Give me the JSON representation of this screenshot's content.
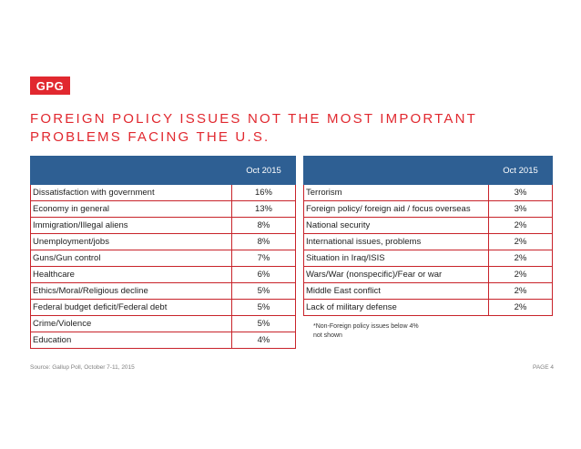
{
  "logo": "GPG",
  "title": "FOREIGN POLICY ISSUES NOT THE MOST IMPORTANT PROBLEMS FACING THE U.S.",
  "colors": {
    "accent": "#e1282f",
    "header": "#2e5f93",
    "border": "#c8232a"
  },
  "left_table": {
    "header_label": "",
    "header_value": "Oct 2015",
    "rows": [
      {
        "label": "Dissatisfaction with government",
        "value": "16%"
      },
      {
        "label": "Economy in general",
        "value": "13%"
      },
      {
        "label": "Immigration/Illegal aliens",
        "value": "8%"
      },
      {
        "label": "Unemployment/jobs",
        "value": "8%"
      },
      {
        "label": "Guns/Gun control",
        "value": "7%"
      },
      {
        "label": "Healthcare",
        "value": "6%"
      },
      {
        "label": "Ethics/Moral/Religious decline",
        "value": "5%"
      },
      {
        "label": "Federal budget deficit/Federal debt",
        "value": "5%"
      },
      {
        "label": "Crime/Violence",
        "value": "5%"
      },
      {
        "label": "Education",
        "value": "4%"
      }
    ]
  },
  "right_table": {
    "header_label": "",
    "header_value": "Oct 2015",
    "rows": [
      {
        "label": "Terrorism",
        "value": "3%"
      },
      {
        "label": "Foreign policy/ foreign aid / focus overseas",
        "value": "3%"
      },
      {
        "label": "National security",
        "value": "2%"
      },
      {
        "label": "International issues, problems",
        "value": "2%"
      },
      {
        "label": "Situation in Iraq/ISIS",
        "value": "2%"
      },
      {
        "label": "Wars/War (nonspecific)/Fear or war",
        "value": "2%"
      },
      {
        "label": "Middle East conflict",
        "value": "2%"
      },
      {
        "label": "Lack of military defense",
        "value": "2%"
      }
    ]
  },
  "note": "*Non-Foreign policy issues below 4% not shown",
  "source": "Source: Gallup Poll, October 7-11, 2015",
  "page": "PAGE 4"
}
